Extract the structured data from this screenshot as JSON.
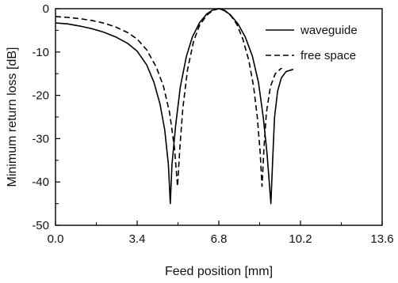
{
  "chart_data": {
    "type": "line",
    "title": "",
    "xlabel": "Feed position [mm]",
    "ylabel": "Minimum return loss [dB]",
    "xlim": [
      0.0,
      13.6
    ],
    "ylim": [
      -50,
      0
    ],
    "x_ticks": [
      0.0,
      3.4,
      6.8,
      10.2,
      13.6
    ],
    "x_tick_labels": [
      "0.0",
      "3.4",
      "6.8",
      "10.2",
      "13.6"
    ],
    "y_ticks": [
      0,
      -10,
      -20,
      -30,
      -40,
      -50
    ],
    "y_tick_labels": [
      "0",
      "-10",
      "-20",
      "-30",
      "-40",
      "-50"
    ],
    "legend_position": "top-right",
    "series": [
      {
        "name": "waveguide",
        "style": "solid",
        "color": "#000000",
        "x": [
          0.0,
          0.5,
          1.0,
          1.5,
          2.0,
          2.5,
          3.0,
          3.4,
          3.8,
          4.1,
          4.35,
          4.55,
          4.7,
          4.78,
          4.85,
          5.0,
          5.2,
          5.45,
          5.7,
          6.0,
          6.3,
          6.55,
          6.8,
          7.05,
          7.3,
          7.6,
          7.9,
          8.2,
          8.45,
          8.65,
          8.8,
          8.9,
          8.97,
          9.04,
          9.12,
          9.25,
          9.4,
          9.6,
          9.9
        ],
        "y": [
          -3.3,
          -3.5,
          -4.0,
          -4.6,
          -5.4,
          -6.5,
          -8.0,
          -9.8,
          -13.0,
          -17.0,
          -22.0,
          -28.0,
          -36.0,
          -45.0,
          -36.0,
          -27.0,
          -18.0,
          -11.0,
          -6.5,
          -3.2,
          -1.2,
          -0.3,
          0.0,
          -0.4,
          -1.5,
          -3.5,
          -6.5,
          -11.0,
          -17.0,
          -25.0,
          -33.0,
          -40.0,
          -45.0,
          -35.0,
          -25.0,
          -19.0,
          -16.0,
          -14.5,
          -14.0
        ]
      },
      {
        "name": "free space",
        "style": "dashed",
        "color": "#000000",
        "x": [
          0.0,
          0.5,
          1.0,
          1.5,
          2.0,
          2.5,
          3.0,
          3.4,
          3.8,
          4.2,
          4.5,
          4.75,
          4.95,
          5.08,
          5.18,
          5.3,
          5.5,
          5.75,
          6.0,
          6.3,
          6.55,
          6.8,
          7.05,
          7.3,
          7.55,
          7.8,
          8.05,
          8.25,
          8.4,
          8.52,
          8.6,
          8.68,
          8.78,
          8.95,
          9.15,
          9.45
        ],
        "y": [
          -1.8,
          -2.0,
          -2.3,
          -2.7,
          -3.3,
          -4.2,
          -5.5,
          -7.0,
          -9.5,
          -13.5,
          -18.0,
          -24.0,
          -32.0,
          -41.0,
          -32.0,
          -23.0,
          -14.0,
          -7.5,
          -3.8,
          -1.5,
          -0.4,
          0.0,
          -0.5,
          -1.6,
          -3.6,
          -7.0,
          -12.0,
          -18.0,
          -25.0,
          -33.0,
          -41.0,
          -32.0,
          -24.0,
          -18.0,
          -15.0,
          -13.5
        ]
      }
    ]
  }
}
